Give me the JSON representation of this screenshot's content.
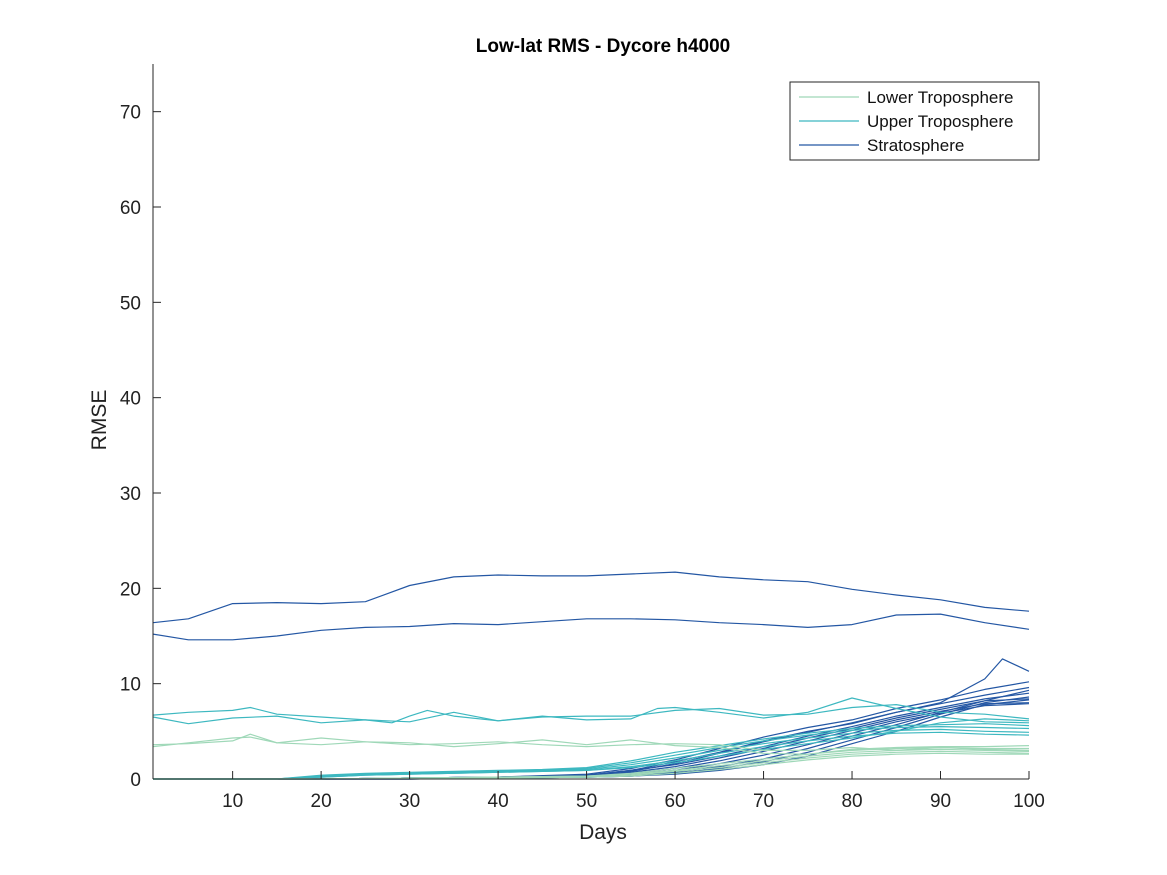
{
  "chart_data": {
    "type": "line",
    "title": "Low-lat RMS - Dycore h4000",
    "xlabel": "Days",
    "ylabel": "RMSE",
    "xlim": [
      1,
      100
    ],
    "ylim": [
      0,
      75
    ],
    "xticks": [
      10,
      20,
      30,
      40,
      50,
      60,
      70,
      80,
      90,
      100
    ],
    "yticks": [
      0,
      10,
      20,
      30,
      40,
      50,
      60,
      70
    ],
    "grid": false,
    "legend_position": "top-right",
    "colors": {
      "Lower Troposphere": "#9fd8b8",
      "Upper Troposphere": "#3db8c0",
      "Stratosphere": "#2457a4"
    },
    "legend": [
      {
        "label": "Lower Troposphere",
        "color": "#9fd8b8"
      },
      {
        "label": "Upper Troposphere",
        "color": "#3db8c0"
      },
      {
        "label": "Stratosphere",
        "color": "#2457a4"
      }
    ],
    "series": [
      {
        "group": "Stratosphere",
        "x": [
          1,
          5,
          10,
          15,
          20,
          25,
          30,
          35,
          40,
          45,
          50,
          55,
          60,
          65,
          70,
          75,
          80,
          85,
          90,
          95,
          100
        ],
        "y": [
          16.4,
          16.8,
          18.4,
          18.5,
          18.4,
          18.6,
          20.3,
          21.2,
          21.4,
          21.3,
          21.3,
          21.5,
          21.7,
          21.2,
          20.9,
          20.7,
          19.9,
          19.3,
          18.8,
          18.0,
          17.6
        ]
      },
      {
        "group": "Stratosphere",
        "x": [
          1,
          5,
          10,
          15,
          20,
          25,
          30,
          35,
          40,
          45,
          50,
          55,
          60,
          65,
          70,
          75,
          80,
          85,
          90,
          95,
          100
        ],
        "y": [
          15.2,
          14.6,
          14.6,
          15.0,
          15.6,
          15.9,
          16.0,
          16.3,
          16.2,
          16.5,
          16.8,
          16.8,
          16.7,
          16.4,
          16.2,
          15.9,
          16.2,
          17.2,
          17.3,
          16.4,
          15.7
        ]
      },
      {
        "group": "Stratosphere",
        "x": [
          1,
          10,
          20,
          30,
          40,
          50,
          55,
          60,
          65,
          70,
          75,
          80,
          85,
          90,
          95,
          97,
          100
        ],
        "y": [
          0,
          0,
          0,
          0.1,
          0.2,
          0.4,
          0.9,
          1.8,
          2.8,
          4.0,
          5.0,
          5.8,
          7.0,
          8.0,
          10.5,
          12.6,
          11.3
        ]
      },
      {
        "group": "Stratosphere",
        "x": [
          1,
          10,
          20,
          30,
          40,
          50,
          55,
          60,
          65,
          70,
          75,
          80,
          85,
          90,
          95,
          100
        ],
        "y": [
          0,
          0,
          0,
          0.1,
          0.2,
          0.5,
          1.1,
          2.0,
          3.2,
          4.4,
          5.4,
          6.2,
          7.4,
          8.3,
          9.4,
          10.2
        ]
      },
      {
        "group": "Stratosphere",
        "x": [
          1,
          10,
          20,
          30,
          40,
          50,
          55,
          60,
          65,
          70,
          75,
          80,
          85,
          90,
          95,
          100
        ],
        "y": [
          0,
          0,
          0,
          0.1,
          0.2,
          0.4,
          0.8,
          1.6,
          2.7,
          3.9,
          4.9,
          5.9,
          7.0,
          7.9,
          8.8,
          9.6
        ]
      },
      {
        "group": "Stratosphere",
        "x": [
          1,
          10,
          20,
          30,
          40,
          50,
          55,
          60,
          65,
          70,
          75,
          80,
          85,
          90,
          95,
          100
        ],
        "y": [
          0,
          0,
          0,
          0.1,
          0.2,
          0.4,
          0.9,
          1.5,
          2.4,
          3.4,
          4.5,
          5.5,
          6.6,
          7.5,
          8.4,
          9.0
        ]
      },
      {
        "group": "Stratosphere",
        "x": [
          1,
          10,
          20,
          30,
          40,
          50,
          55,
          60,
          65,
          70,
          75,
          80,
          85,
          90,
          95,
          100
        ],
        "y": [
          0,
          0,
          0,
          0.1,
          0.2,
          0.3,
          0.7,
          1.3,
          2.2,
          3.2,
          4.3,
          5.3,
          6.4,
          7.3,
          8.2,
          8.4
        ]
      },
      {
        "group": "Stratosphere",
        "x": [
          1,
          10,
          20,
          30,
          40,
          50,
          55,
          60,
          65,
          70,
          75,
          80,
          85,
          90,
          95,
          100
        ],
        "y": [
          0,
          0,
          0,
          0.1,
          0.2,
          0.3,
          0.6,
          1.1,
          1.9,
          2.9,
          4.0,
          5.1,
          6.2,
          7.1,
          7.9,
          8.0
        ]
      },
      {
        "group": "Stratosphere",
        "x": [
          1,
          10,
          20,
          30,
          40,
          50,
          55,
          60,
          65,
          70,
          75,
          80,
          85,
          90,
          95,
          100
        ],
        "y": [
          0,
          0,
          0,
          0.1,
          0.2,
          0.3,
          0.5,
          0.9,
          1.6,
          2.5,
          3.6,
          4.8,
          6.0,
          6.9,
          7.7,
          7.9
        ]
      },
      {
        "group": "Stratosphere",
        "x": [
          1,
          10,
          20,
          30,
          40,
          50,
          55,
          60,
          65,
          70,
          75,
          80,
          85,
          90,
          95,
          100
        ],
        "y": [
          0,
          0,
          0,
          0,
          0.1,
          0.2,
          0.4,
          0.7,
          1.3,
          2.1,
          3.2,
          4.5,
          5.7,
          7.0,
          8.2,
          9.3
        ]
      },
      {
        "group": "Stratosphere",
        "x": [
          1,
          10,
          20,
          30,
          40,
          50,
          55,
          60,
          65,
          70,
          75,
          80,
          85,
          90,
          95,
          100
        ],
        "y": [
          0,
          0,
          0,
          0,
          0.1,
          0.2,
          0.3,
          0.6,
          1.1,
          1.8,
          2.8,
          4.1,
          5.4,
          6.8,
          8.0,
          8.6
        ]
      },
      {
        "group": "Stratosphere",
        "x": [
          1,
          10,
          20,
          30,
          40,
          50,
          55,
          60,
          65,
          70,
          75,
          80,
          85,
          90,
          95,
          100
        ],
        "y": [
          0,
          0,
          0,
          0,
          0.1,
          0.2,
          0.3,
          0.5,
          0.9,
          1.5,
          2.4,
          3.7,
          5.0,
          6.5,
          7.8,
          8.3
        ]
      },
      {
        "group": "Upper Troposphere",
        "x": [
          1,
          5,
          10,
          12,
          15,
          20,
          25,
          28,
          30,
          32,
          35,
          40,
          45,
          50,
          55,
          58,
          60,
          65,
          70,
          75,
          80,
          85,
          90,
          95,
          100
        ],
        "y": [
          6.7,
          7.0,
          7.2,
          7.5,
          6.8,
          6.5,
          6.2,
          5.9,
          6.6,
          7.2,
          6.6,
          6.1,
          6.6,
          6.2,
          6.3,
          7.4,
          7.5,
          7.0,
          6.4,
          7.0,
          8.5,
          7.4,
          6.5,
          6.0,
          5.9
        ]
      },
      {
        "group": "Upper Troposphere",
        "x": [
          1,
          5,
          10,
          15,
          20,
          25,
          30,
          35,
          40,
          45,
          50,
          55,
          60,
          65,
          70,
          75,
          80,
          85,
          90,
          95,
          100
        ],
        "y": [
          6.5,
          5.8,
          6.4,
          6.6,
          5.9,
          6.2,
          6.0,
          7.0,
          6.1,
          6.5,
          6.6,
          6.6,
          7.2,
          7.4,
          6.7,
          6.8,
          7.5,
          7.8,
          7.0,
          6.8,
          6.3
        ]
      },
      {
        "group": "Upper Troposphere",
        "x": [
          1,
          10,
          15,
          20,
          25,
          30,
          35,
          40,
          45,
          50,
          55,
          60,
          65,
          70,
          75,
          80,
          85,
          90,
          95,
          100
        ],
        "y": [
          0,
          0,
          0,
          0.4,
          0.6,
          0.7,
          0.8,
          0.9,
          1.0,
          1.2,
          1.9,
          2.8,
          3.5,
          4.2,
          4.8,
          5.3,
          5.6,
          5.7,
          5.8,
          5.6
        ]
      },
      {
        "group": "Upper Troposphere",
        "x": [
          1,
          10,
          15,
          20,
          25,
          30,
          35,
          40,
          45,
          50,
          55,
          60,
          65,
          70,
          75,
          80,
          85,
          90,
          95,
          100
        ],
        "y": [
          0,
          0,
          0,
          0.3,
          0.5,
          0.6,
          0.7,
          0.8,
          0.9,
          1.1,
          1.7,
          2.5,
          3.3,
          4.0,
          4.6,
          5.1,
          5.4,
          5.5,
          5.4,
          5.3
        ]
      },
      {
        "group": "Upper Troposphere",
        "x": [
          1,
          10,
          15,
          20,
          25,
          30,
          35,
          40,
          45,
          50,
          55,
          60,
          65,
          70,
          75,
          80,
          85,
          90,
          95,
          100
        ],
        "y": [
          0,
          0,
          0,
          0.3,
          0.5,
          0.6,
          0.7,
          0.8,
          0.9,
          1.0,
          1.5,
          2.2,
          3.0,
          3.7,
          4.3,
          4.8,
          5.1,
          5.2,
          5.0,
          4.9
        ]
      },
      {
        "group": "Upper Troposphere",
        "x": [
          1,
          10,
          15,
          20,
          25,
          30,
          35,
          40,
          45,
          50,
          55,
          60,
          65,
          70,
          75,
          80,
          85,
          90,
          95,
          100
        ],
        "y": [
          0,
          0,
          0,
          0.2,
          0.4,
          0.5,
          0.6,
          0.7,
          0.8,
          0.9,
          1.3,
          1.9,
          2.7,
          3.4,
          4.0,
          4.5,
          4.8,
          4.9,
          4.7,
          4.6
        ]
      },
      {
        "group": "Upper Troposphere",
        "x": [
          1,
          10,
          15,
          20,
          25,
          30,
          35,
          40,
          45,
          50,
          55,
          60,
          65,
          70,
          75,
          80,
          85,
          90,
          95,
          100
        ],
        "y": [
          0,
          0,
          0,
          0.2,
          0.4,
          0.5,
          0.6,
          0.7,
          0.8,
          0.9,
          1.2,
          1.7,
          2.4,
          3.1,
          3.7,
          4.3,
          5.0,
          5.9,
          6.3,
          6.1
        ]
      },
      {
        "group": "Lower Troposphere",
        "x": [
          1,
          5,
          10,
          12,
          15,
          20,
          25,
          30,
          35,
          40,
          45,
          50,
          55,
          60,
          65,
          70,
          75,
          80,
          85,
          90,
          95,
          100
        ],
        "y": [
          3.4,
          3.8,
          4.3,
          4.4,
          3.8,
          4.3,
          3.9,
          3.8,
          3.4,
          3.7,
          4.1,
          3.6,
          4.1,
          3.5,
          3.3,
          2.7,
          2.6,
          3.1,
          3.3,
          3.4,
          3.4,
          3.5
        ]
      },
      {
        "group": "Lower Troposphere",
        "x": [
          1,
          5,
          10,
          12,
          15,
          20,
          25,
          30,
          35,
          40,
          45,
          50,
          55,
          60,
          65,
          70,
          75,
          80,
          85,
          90,
          95,
          100
        ],
        "y": [
          3.6,
          3.7,
          4.0,
          4.7,
          3.8,
          3.6,
          3.9,
          3.6,
          3.7,
          3.9,
          3.6,
          3.4,
          3.6,
          3.7,
          3.6,
          3.0,
          3.0,
          3.3,
          3.0,
          3.3,
          3.1,
          3.0
        ]
      },
      {
        "group": "Lower Troposphere",
        "x": [
          1,
          10,
          20,
          30,
          40,
          50,
          55,
          60,
          65,
          70,
          75,
          80,
          85,
          90,
          95,
          100
        ],
        "y": [
          0,
          0,
          0,
          0.1,
          0.2,
          0.3,
          0.6,
          1.1,
          1.6,
          2.1,
          2.6,
          3.0,
          3.2,
          3.3,
          3.2,
          3.2
        ]
      },
      {
        "group": "Lower Troposphere",
        "x": [
          1,
          10,
          20,
          30,
          40,
          50,
          55,
          60,
          65,
          70,
          75,
          80,
          85,
          90,
          95,
          100
        ],
        "y": [
          0,
          0,
          0,
          0.1,
          0.2,
          0.3,
          0.5,
          0.9,
          1.4,
          1.9,
          2.4,
          2.8,
          3.0,
          3.1,
          3.0,
          2.9
        ]
      },
      {
        "group": "Lower Troposphere",
        "x": [
          1,
          10,
          20,
          30,
          40,
          50,
          55,
          60,
          65,
          70,
          75,
          80,
          85,
          90,
          95,
          100
        ],
        "y": [
          0,
          0,
          0,
          0.1,
          0.1,
          0.2,
          0.4,
          0.8,
          1.2,
          1.7,
          2.2,
          2.6,
          2.8,
          2.9,
          2.8,
          2.7
        ]
      },
      {
        "group": "Lower Troposphere",
        "x": [
          1,
          10,
          20,
          30,
          40,
          50,
          55,
          60,
          65,
          70,
          75,
          80,
          85,
          90,
          95,
          100
        ],
        "y": [
          0,
          0,
          0,
          0.1,
          0.1,
          0.2,
          0.3,
          0.6,
          1.0,
          1.5,
          2.0,
          2.4,
          2.6,
          2.7,
          2.6,
          2.6
        ]
      }
    ]
  }
}
